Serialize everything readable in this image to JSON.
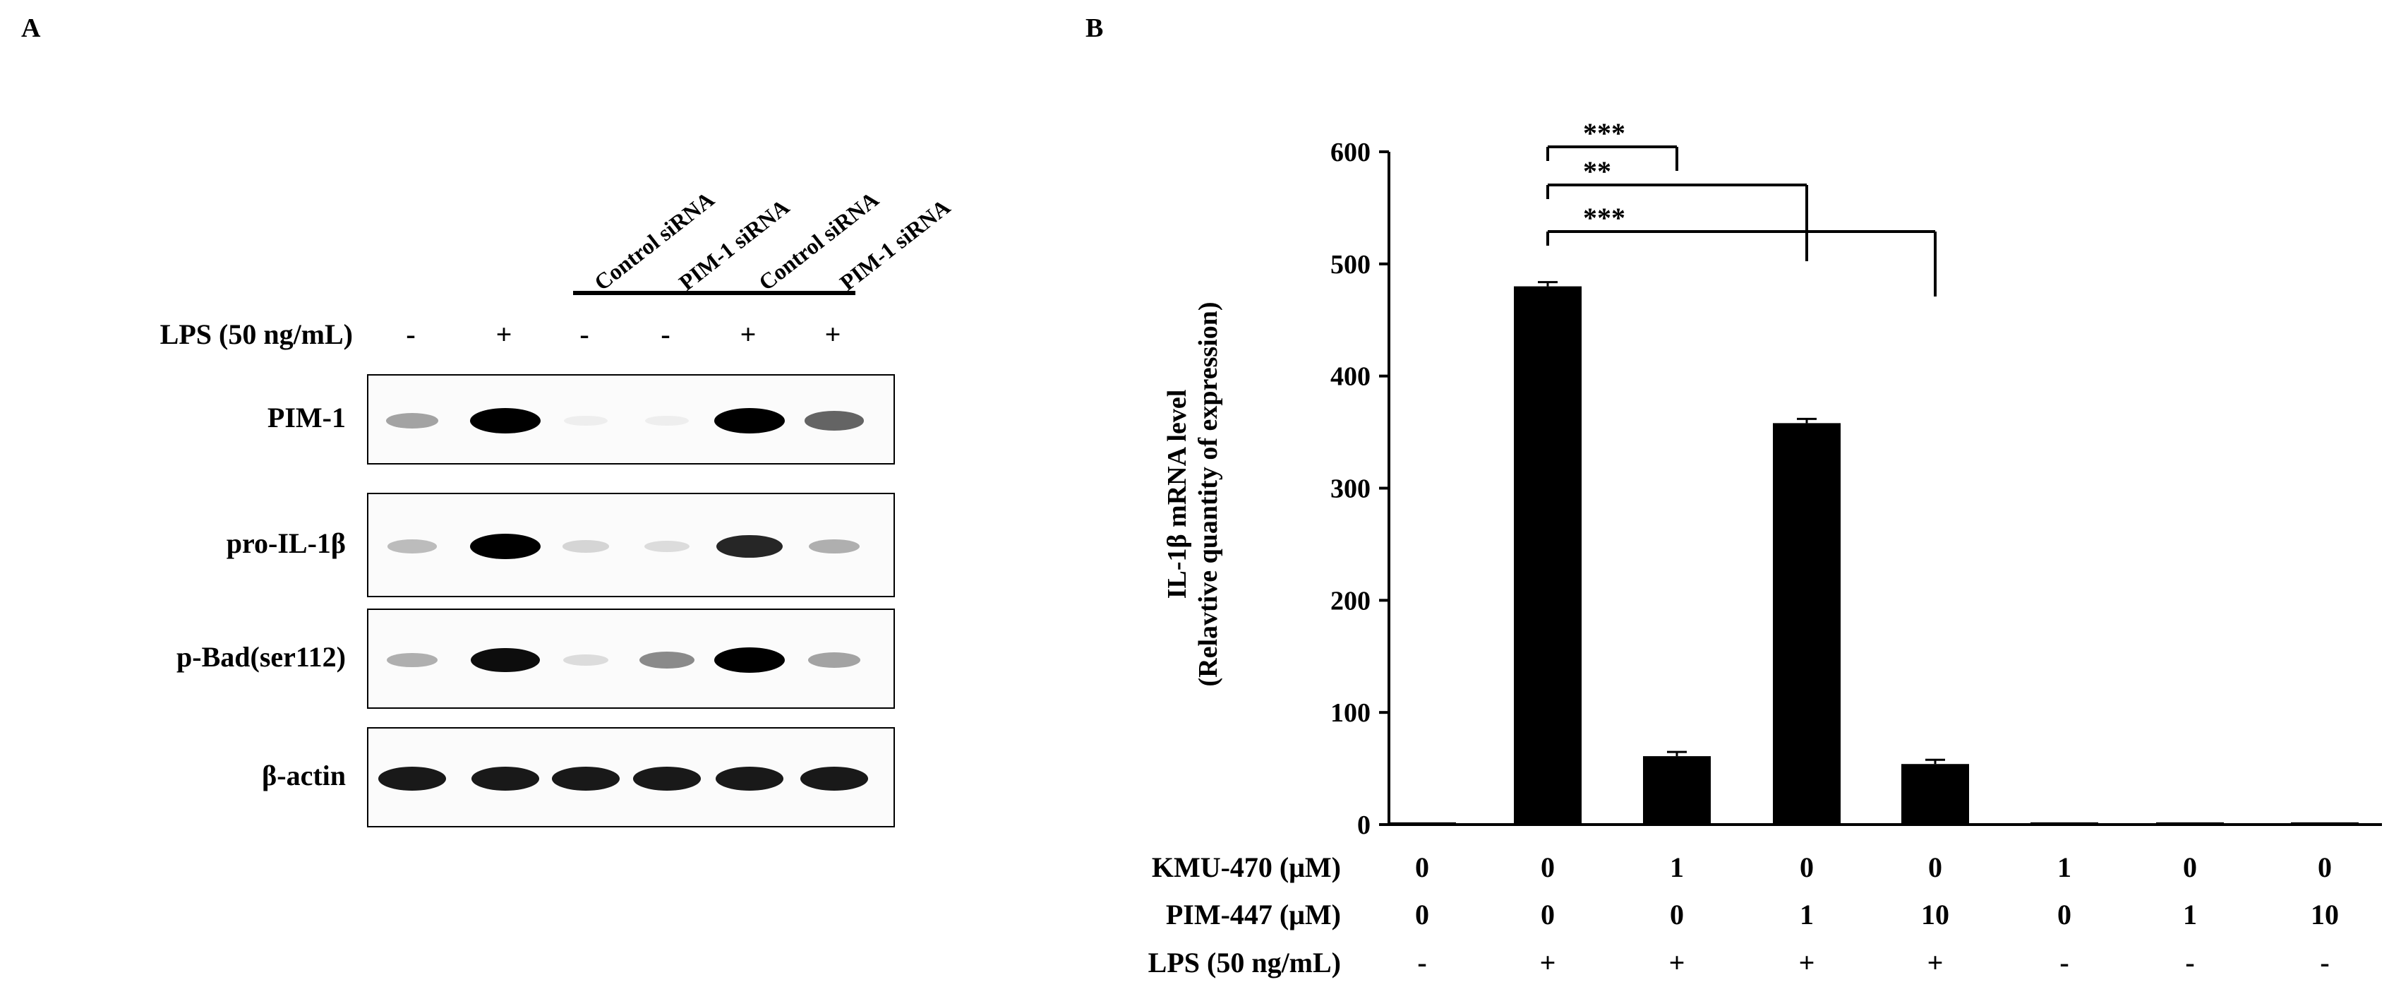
{
  "panels": {
    "a": "A",
    "b": "B"
  },
  "western_blot": {
    "lane_labels": [
      "Control siRNA",
      "PIM-1 siRNA",
      "Control siRNA",
      "PIM-1 siRNA"
    ],
    "lps_label": "LPS (50 ng/mL)",
    "lps_signs": [
      "-",
      "+",
      "-",
      "-",
      "+",
      "+"
    ],
    "rows": [
      {
        "label": "PIM-1",
        "intensity": [
          0.35,
          1.0,
          0.03,
          0.03,
          1.0,
          0.6
        ]
      },
      {
        "label": "pro-IL-1β",
        "intensity": [
          0.25,
          1.0,
          0.15,
          0.12,
          0.85,
          0.3
        ]
      },
      {
        "label": "p-Bad(ser112)",
        "intensity": [
          0.3,
          0.95,
          0.12,
          0.45,
          1.0,
          0.35
        ]
      },
      {
        "label": "β-actin",
        "intensity": [
          0.9,
          0.9,
          0.9,
          0.9,
          0.9,
          0.9
        ]
      }
    ]
  },
  "chart_data": {
    "type": "bar",
    "ylabel_line1": "IL-1β  mRNA level",
    "ylabel_line2": "(Relavtive quantity  of expression)",
    "ylim": [
      0,
      600
    ],
    "yticks": [
      "0",
      "100",
      "200",
      "300",
      "400",
      "500",
      "600"
    ],
    "ytick_values": [
      0,
      100,
      200,
      300,
      400,
      500,
      600
    ],
    "values": [
      2,
      480,
      61,
      358,
      54,
      2,
      2,
      2
    ],
    "significance": [
      {
        "label": "***",
        "from": 1,
        "to": 2
      },
      {
        "label": "**",
        "from": 1,
        "to": 3
      },
      {
        "label": "***",
        "from": 1,
        "to": 4
      }
    ],
    "conditions": [
      {
        "label": "KMU-470 (μM)",
        "values": [
          "0",
          "0",
          "1",
          "0",
          "0",
          "1",
          "0",
          "0"
        ]
      },
      {
        "label": "PIM-447 (μM)",
        "values": [
          "0",
          "0",
          "0",
          "1",
          "10",
          "0",
          "1",
          "10"
        ]
      },
      {
        "label": "LPS (50 ng/mL)",
        "values": [
          "-",
          "+",
          "+",
          "+",
          "+",
          "-",
          "-",
          "-"
        ]
      }
    ],
    "bar_color": "#000000"
  }
}
